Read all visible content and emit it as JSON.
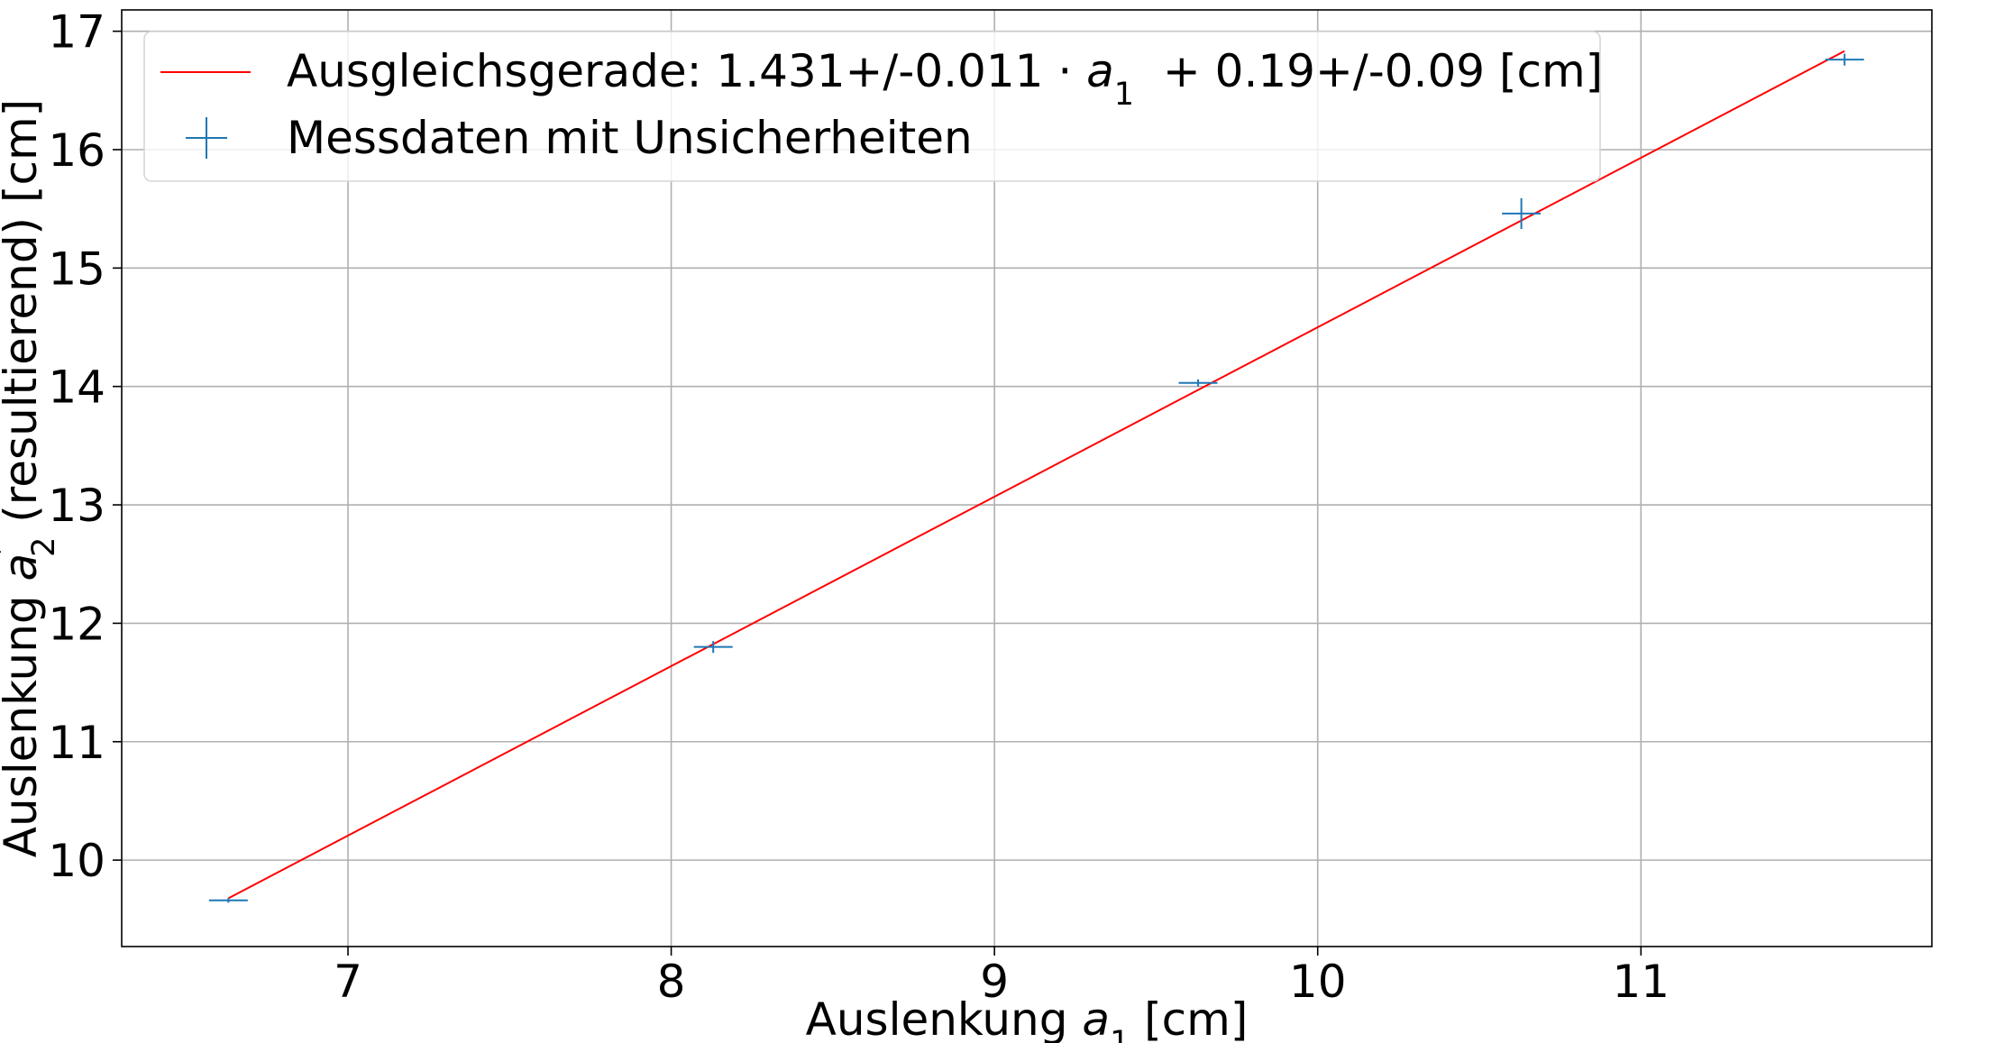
{
  "chart_data": {
    "type": "scatter",
    "x_axis": {
      "label_prefix": "Auslenkung ",
      "label_var": "a",
      "label_sub": "1",
      "label_suffix": " [cm]",
      "range": [
        6.3,
        11.9
      ],
      "ticks": [
        7,
        8,
        9,
        10,
        11
      ],
      "tick_labels": [
        "7",
        "8",
        "9",
        "10",
        "11"
      ]
    },
    "y_axis": {
      "label_prefix": "Auslenkung ",
      "label_var": "a",
      "label_prime": "′",
      "label_sub": "2",
      "label_suffix": " (resultierend) [cm]",
      "range": [
        9.27,
        17.18
      ],
      "ticks": [
        10,
        11,
        12,
        13,
        14,
        15,
        16,
        17
      ],
      "tick_labels": [
        "10",
        "11",
        "12",
        "13",
        "14",
        "15",
        "16",
        "17"
      ]
    },
    "grid": true,
    "legend_position": "upper-left",
    "series": [
      {
        "name_prefix": "Ausgleichsgerade: 1.431+/-0.011 · ",
        "name_var": "a",
        "name_sub": "1",
        "name_suffix": "  + 0.19+/-0.09 [cm]",
        "kind": "line",
        "color": "#ff0000",
        "slope": 1.431,
        "intercept": 0.19,
        "x": [
          6.63,
          11.63
        ]
      },
      {
        "name": "Messdaten mit Unsicherheiten",
        "kind": "errorbar",
        "color": "#1f77b4",
        "points": [
          {
            "x": 6.63,
            "y": 9.66,
            "xerr": 0.06,
            "yerr": 0.02
          },
          {
            "x": 8.13,
            "y": 11.8,
            "xerr": 0.06,
            "yerr": 0.05
          },
          {
            "x": 9.63,
            "y": 14.03,
            "xerr": 0.06,
            "yerr": 0.03
          },
          {
            "x": 10.63,
            "y": 15.46,
            "xerr": 0.06,
            "yerr": 0.13
          },
          {
            "x": 11.63,
            "y": 16.76,
            "xerr": 0.06,
            "yerr": 0.05
          }
        ]
      }
    ]
  }
}
